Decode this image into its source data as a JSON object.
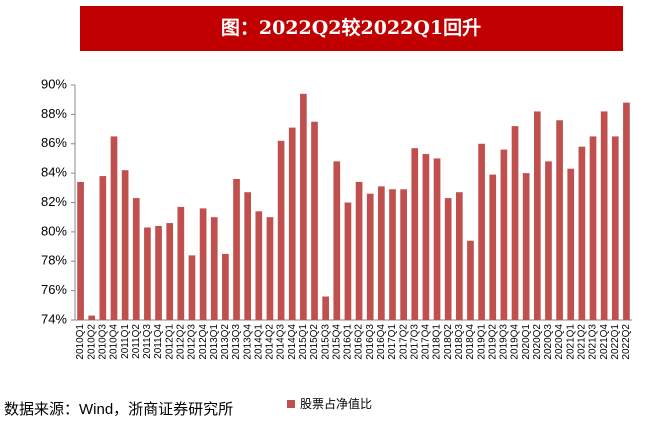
{
  "chart_data": {
    "type": "bar",
    "title": "图：2022Q2较2022Q1回升",
    "categories": [
      "2010Q1",
      "2010Q2",
      "2010Q3",
      "2010Q4",
      "2011Q1",
      "2011Q2",
      "2011Q3",
      "2011Q4",
      "2012Q1",
      "2012Q2",
      "2012Q3",
      "2012Q4",
      "2013Q1",
      "2013Q2",
      "2013Q3",
      "2013Q4",
      "2014Q1",
      "2014Q2",
      "2014Q3",
      "2014Q4",
      "2015Q1",
      "2015Q2",
      "2015Q3",
      "2015Q4",
      "2016Q1",
      "2016Q2",
      "2016Q3",
      "2016Q4",
      "2017Q1",
      "2017Q2",
      "2017Q3",
      "2017Q4",
      "2018Q1",
      "2018Q2",
      "2018Q3",
      "2018Q4",
      "2019Q1",
      "2019Q2",
      "2019Q3",
      "2019Q4",
      "2020Q1",
      "2020Q2",
      "2020Q3",
      "2020Q4",
      "2021Q1",
      "2021Q2",
      "2021Q3",
      "2021Q4",
      "2022Q1",
      "2022Q2"
    ],
    "series": [
      {
        "name": "股票占净值比",
        "color": "#c0504d",
        "values": [
          83.4,
          74.3,
          83.8,
          86.5,
          84.2,
          82.3,
          80.3,
          80.4,
          80.6,
          81.7,
          78.4,
          81.6,
          81.0,
          78.5,
          83.6,
          82.7,
          81.4,
          81.0,
          86.2,
          87.1,
          89.4,
          87.5,
          75.6,
          84.8,
          82.0,
          83.4,
          82.6,
          83.1,
          82.9,
          82.9,
          85.7,
          85.3,
          85.0,
          82.3,
          82.7,
          79.4,
          86.0,
          83.9,
          85.6,
          87.2,
          84.0,
          88.2,
          84.8,
          87.6,
          84.3,
          85.8,
          86.5,
          88.2,
          86.5,
          88.8
        ]
      }
    ],
    "ylim": [
      74,
      90
    ],
    "yticks": [
      {
        "value": 74,
        "label": "74%"
      },
      {
        "value": 76,
        "label": "76%"
      },
      {
        "value": 78,
        "label": "78%"
      },
      {
        "value": 80,
        "label": "80%"
      },
      {
        "value": 82,
        "label": "82%"
      },
      {
        "value": 84,
        "label": "84%"
      },
      {
        "value": 86,
        "label": "86%"
      },
      {
        "value": 88,
        "label": "88%"
      },
      {
        "value": 90,
        "label": "90%"
      }
    ],
    "source": "数据来源：Wind，浙商证券研究所"
  }
}
